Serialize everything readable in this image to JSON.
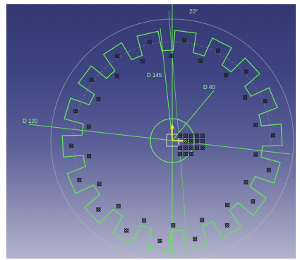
{
  "viewer": {
    "background_top": "#333871",
    "background_bottom": "#b3b4cc",
    "geometry_color": "#67e35d",
    "axis_color": "#e7e84a"
  },
  "dimensions": {
    "d145": "D 145",
    "d40": "D 40",
    "d120": "D 120",
    "angle": "20°"
  },
  "sketch": {
    "teeth": 18,
    "constraint_icon": "constraint-symbol-icon"
  }
}
